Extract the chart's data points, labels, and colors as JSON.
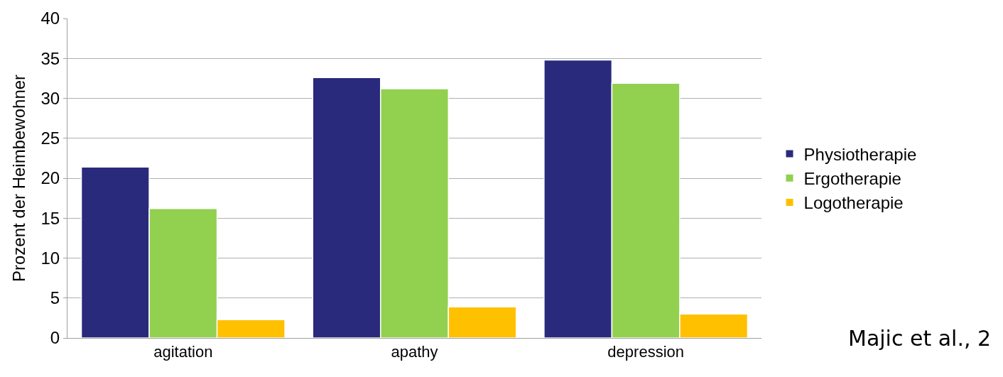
{
  "chart_data": {
    "type": "bar",
    "ylabel": "Prozent der Heimbewohner",
    "categories": [
      "agitation",
      "apathy",
      "depression"
    ],
    "series": [
      {
        "name": "Physiotherapie",
        "color": "#2a2a7c",
        "values": [
          21.4,
          32.6,
          34.8
        ]
      },
      {
        "name": "Ergotherapie",
        "color": "#92d050",
        "values": [
          16.2,
          31.2,
          31.9
        ]
      },
      {
        "name": "Logotherapie",
        "color": "#ffc000",
        "values": [
          2.3,
          3.9,
          3.0
        ]
      }
    ],
    "ylim": [
      0,
      40
    ],
    "yticks": [
      0,
      5,
      10,
      15,
      20,
      25,
      30,
      35,
      40
    ],
    "grid": "y",
    "legend": "right",
    "annotations": [
      "Majic et al., 2"
    ]
  }
}
